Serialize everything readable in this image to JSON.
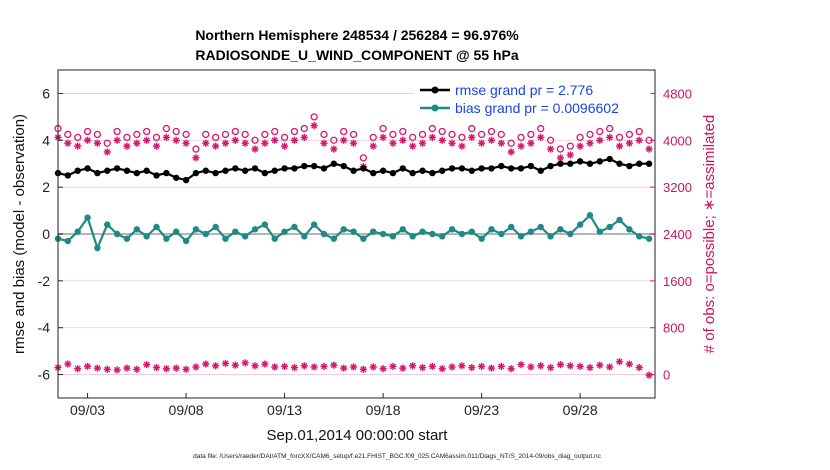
{
  "chart_data": {
    "type": "line",
    "title_line1": "Northern Hemisphere 248534 / 256284 = 96.976%",
    "title_line2": "RADIOSONDE_U_WIND_COMPONENT @ 55 hPa",
    "xlabel": "Sep.01,2014 00:00:00 start",
    "ylabel_left": "rmse and bias (model - observation)",
    "ylabel_right": "# of obs: o=possible; ∗=assimilated",
    "footnote": "data file: /Users/raeder/DAI/ATM_forcXX/CAM6_setup/f.e21.FHIST_BGC.f09_025.CAM6assim.011/Diags_NTrS_2014-09/obs_diag_output.nc",
    "xlim_days": [
      0.5,
      30.8
    ],
    "ylim_left": [
      -7,
      7
    ],
    "ylim_right": [
      -400,
      5200
    ],
    "x_ticks": [
      {
        "label": "09/03",
        "day": 2
      },
      {
        "label": "09/08",
        "day": 7
      },
      {
        "label": "09/13",
        "day": 12
      },
      {
        "label": "09/18",
        "day": 17
      },
      {
        "label": "09/23",
        "day": 22
      },
      {
        "label": "09/28",
        "day": 27
      }
    ],
    "y_ticks_left": [
      "-6",
      "-4",
      "-2",
      "0",
      "2",
      "4",
      "6"
    ],
    "y_ticks_right": [
      "0",
      "800",
      "1600",
      "2400",
      "3200",
      "4000",
      "4800"
    ],
    "colors": {
      "rmse": "#000000",
      "bias": "#1f8a84",
      "obs": "#d6186b",
      "zero_line": "#b5b5b5",
      "grid": "#f0c4d5"
    },
    "legend": [
      {
        "label": "rmse grand pr = 2.776",
        "color": "#000000"
      },
      {
        "label": "bias grand pr = 0.0096602",
        "color": "#1f8a84"
      }
    ],
    "series_rmse": {
      "name": "rmse",
      "x_days": [
        0.5,
        1.0,
        1.5,
        2.0,
        2.5,
        3.0,
        3.5,
        4.0,
        4.5,
        5.0,
        5.5,
        6.0,
        6.5,
        7.0,
        7.5,
        8.0,
        8.5,
        9.0,
        9.5,
        10.0,
        10.5,
        11.0,
        11.5,
        12.0,
        12.5,
        13.0,
        13.5,
        14.0,
        14.5,
        15.0,
        15.5,
        16.0,
        16.5,
        17.0,
        17.5,
        18.0,
        18.5,
        19.0,
        19.5,
        20.0,
        20.5,
        21.0,
        21.5,
        22.0,
        22.5,
        23.0,
        23.5,
        24.0,
        24.5,
        25.0,
        25.5,
        26.0,
        26.5,
        27.0,
        27.5,
        28.0,
        28.5,
        29.0,
        29.5,
        30.0,
        30.5
      ],
      "values": [
        2.6,
        2.5,
        2.7,
        2.8,
        2.6,
        2.7,
        2.8,
        2.7,
        2.6,
        2.7,
        2.5,
        2.6,
        2.4,
        2.3,
        2.6,
        2.7,
        2.6,
        2.7,
        2.8,
        2.7,
        2.8,
        2.6,
        2.7,
        2.8,
        2.8,
        2.9,
        2.9,
        2.8,
        3.0,
        2.9,
        2.7,
        2.8,
        2.6,
        2.7,
        2.6,
        2.8,
        2.6,
        2.7,
        2.6,
        2.7,
        2.8,
        2.8,
        2.7,
        2.8,
        2.8,
        2.9,
        2.8,
        2.8,
        2.9,
        2.7,
        2.9,
        3.0,
        3.0,
        3.1,
        3.0,
        3.1,
        3.2,
        3.0,
        2.9,
        3.0,
        3.0
      ]
    },
    "series_bias": {
      "name": "bias",
      "x_days": [
        0.5,
        1.0,
        1.5,
        2.0,
        2.5,
        3.0,
        3.5,
        4.0,
        4.5,
        5.0,
        5.5,
        6.0,
        6.5,
        7.0,
        7.5,
        8.0,
        8.5,
        9.0,
        9.5,
        10.0,
        10.5,
        11.0,
        11.5,
        12.0,
        12.5,
        13.0,
        13.5,
        14.0,
        14.5,
        15.0,
        15.5,
        16.0,
        16.5,
        17.0,
        17.5,
        18.0,
        18.5,
        19.0,
        19.5,
        20.0,
        20.5,
        21.0,
        21.5,
        22.0,
        22.5,
        23.0,
        23.5,
        24.0,
        24.5,
        25.0,
        25.5,
        26.0,
        26.5,
        27.0,
        27.5,
        28.0,
        28.5,
        29.0,
        29.5,
        30.0,
        30.5
      ],
      "values": [
        -0.2,
        -0.3,
        0.1,
        0.7,
        -0.6,
        0.4,
        0.0,
        -0.2,
        0.2,
        -0.1,
        0.3,
        -0.2,
        0.1,
        -0.3,
        0.2,
        0.0,
        0.3,
        -0.2,
        0.1,
        -0.1,
        0.2,
        0.4,
        -0.2,
        0.1,
        0.3,
        -0.1,
        0.4,
        0.0,
        -0.2,
        0.2,
        0.1,
        -0.2,
        0.1,
        0.0,
        -0.1,
        0.2,
        -0.1,
        0.1,
        0.0,
        -0.1,
        0.2,
        0.0,
        0.1,
        -0.2,
        0.2,
        0.0,
        0.3,
        -0.1,
        0.1,
        0.3,
        -0.1,
        0.2,
        0.0,
        0.4,
        0.8,
        0.1,
        0.3,
        0.6,
        0.2,
        -0.1,
        -0.2
      ]
    },
    "series_possible": {
      "name": "possible",
      "x_days": [
        0.5,
        1.0,
        1.5,
        2.0,
        2.5,
        3.0,
        3.5,
        4.0,
        4.5,
        5.0,
        5.5,
        6.0,
        6.5,
        7.0,
        7.5,
        8.0,
        8.5,
        9.0,
        9.5,
        10.0,
        10.5,
        11.0,
        11.5,
        12.0,
        12.5,
        13.0,
        13.5,
        14.0,
        14.5,
        15.0,
        15.5,
        16.0,
        16.5,
        17.0,
        17.5,
        18.0,
        18.5,
        19.0,
        19.5,
        20.0,
        20.5,
        21.0,
        21.5,
        22.0,
        22.5,
        23.0,
        23.5,
        24.0,
        24.5,
        25.0,
        25.5,
        26.0,
        26.5,
        27.0,
        27.5,
        28.0,
        28.5,
        29.0,
        29.5,
        30.0,
        30.5
      ],
      "values": [
        4200,
        4100,
        4050,
        4150,
        4100,
        3950,
        4150,
        4050,
        4100,
        4150,
        4050,
        4200,
        4150,
        4100,
        3850,
        4100,
        4050,
        4100,
        4150,
        4100,
        4000,
        4100,
        4150,
        4050,
        4150,
        4200,
        4400,
        4100,
        4000,
        4150,
        4100,
        3700,
        4050,
        4200,
        4100,
        4150,
        4050,
        4100,
        4200,
        4150,
        4100,
        4050,
        4200,
        4100,
        4150,
        4100,
        3950,
        4050,
        4100,
        4200,
        4000,
        3850,
        3900,
        4050,
        4100,
        4150,
        4200,
        4050,
        4100,
        4150,
        4000
      ]
    },
    "series_assimilated": {
      "name": "assimilated",
      "x_days": [
        0.5,
        1.0,
        1.5,
        2.0,
        2.5,
        3.0,
        3.5,
        4.0,
        4.5,
        5.0,
        5.5,
        6.0,
        6.5,
        7.0,
        7.5,
        8.0,
        8.5,
        9.0,
        9.5,
        10.0,
        10.5,
        11.0,
        11.5,
        12.0,
        12.5,
        13.0,
        13.5,
        14.0,
        14.5,
        15.0,
        15.5,
        16.0,
        16.5,
        17.0,
        17.5,
        18.0,
        18.5,
        19.0,
        19.5,
        20.0,
        20.5,
        21.0,
        21.5,
        22.0,
        22.5,
        23.0,
        23.5,
        24.0,
        24.5,
        25.0,
        25.5,
        26.0,
        26.5,
        27.0,
        27.5,
        28.0,
        28.5,
        29.0,
        29.5,
        30.0,
        30.5
      ],
      "values": [
        4050,
        3950,
        3900,
        4000,
        3950,
        3800,
        4000,
        3900,
        3950,
        4000,
        3900,
        4050,
        4000,
        3950,
        3700,
        3950,
        3900,
        3950,
        4000,
        3950,
        3850,
        3950,
        4000,
        3900,
        4000,
        4050,
        4250,
        3950,
        3850,
        4000,
        3950,
        3550,
        3900,
        4050,
        3950,
        4000,
        3900,
        3950,
        4050,
        4000,
        3950,
        3900,
        4050,
        3950,
        4000,
        3950,
        3800,
        3900,
        3950,
        4050,
        3850,
        3700,
        3750,
        3900,
        3950,
        4000,
        4050,
        3900,
        3950,
        4000,
        3850
      ]
    },
    "series_lower_counts": {
      "name": "count-lower",
      "x_days": [
        0.5,
        1.0,
        1.5,
        2.0,
        2.5,
        3.0,
        3.5,
        4.0,
        4.5,
        5.0,
        5.5,
        6.0,
        6.5,
        7.0,
        7.5,
        8.0,
        8.5,
        9.0,
        9.5,
        10.0,
        10.5,
        11.0,
        11.5,
        12.0,
        12.5,
        13.0,
        13.5,
        14.0,
        14.5,
        15.0,
        15.5,
        16.0,
        16.5,
        17.0,
        17.5,
        18.0,
        18.5,
        19.0,
        19.5,
        20.0,
        20.5,
        21.0,
        21.5,
        22.0,
        22.5,
        23.0,
        23.5,
        24.0,
        24.5,
        25.0,
        25.5,
        26.0,
        26.5,
        27.0,
        27.5,
        28.0,
        28.5,
        29.0,
        29.5,
        30.0,
        30.5
      ],
      "values": [
        120,
        180,
        100,
        140,
        110,
        90,
        80,
        110,
        90,
        170,
        120,
        100,
        110,
        90,
        130,
        180,
        150,
        190,
        160,
        200,
        150,
        180,
        130,
        140,
        120,
        150,
        130,
        140,
        160,
        110,
        130,
        90,
        130,
        100,
        140,
        110,
        150,
        120,
        140,
        100,
        130,
        150,
        120,
        140,
        110,
        140,
        100,
        170,
        130,
        150,
        120,
        170,
        150,
        140,
        120,
        160,
        130,
        220,
        180,
        120,
        -10
      ]
    }
  }
}
